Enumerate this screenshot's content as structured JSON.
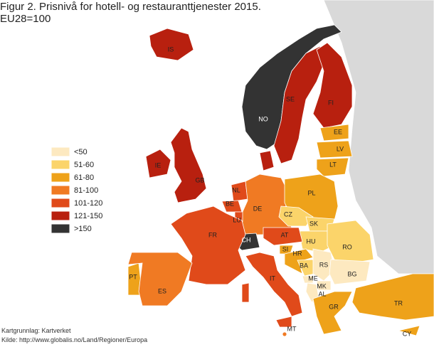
{
  "header": {
    "title": "Figur 2. Prisnivå for hotell- og restauranttjenester 2015.",
    "subtitle": "EU28=100"
  },
  "legend": [
    {
      "label": "<50",
      "color": "#fde9c0"
    },
    {
      "label": "51-60",
      "color": "#fbd46a"
    },
    {
      "label": "61-80",
      "color": "#eea21a"
    },
    {
      "label": "81-100",
      "color": "#f07a23"
    },
    {
      "label": "101-120",
      "color": "#e04a1a"
    },
    {
      "label": "121-150",
      "color": "#b8200f"
    },
    {
      "label": ">150",
      "color": "#333333"
    }
  ],
  "other_land_color": "#d9d9d9",
  "countries": [
    {
      "label": "IS",
      "class": 5
    },
    {
      "label": "NO",
      "class": 6
    },
    {
      "label": "SE",
      "class": 5
    },
    {
      "label": "FI",
      "class": 5
    },
    {
      "label": "EE",
      "class": 2
    },
    {
      "label": "LV",
      "class": 2
    },
    {
      "label": "LT",
      "class": 2
    },
    {
      "label": "IE",
      "class": 5
    },
    {
      "label": "GB",
      "class": 5
    },
    {
      "label": null,
      "class": 5
    },
    {
      "label": "NL",
      "class": 4
    },
    {
      "label": "BE",
      "class": 4
    },
    {
      "label": "LU",
      "class": 4
    },
    {
      "label": "DE",
      "class": 3
    },
    {
      "label": "PL",
      "class": 2
    },
    {
      "label": "CZ",
      "class": 1
    },
    {
      "label": "SK",
      "class": 1
    },
    {
      "label": "HU",
      "class": 1
    },
    {
      "label": "RO",
      "class": 1
    },
    {
      "label": "AT",
      "class": 4
    },
    {
      "label": "CH",
      "class": 6
    },
    {
      "label": "FR",
      "class": 4
    },
    {
      "label": "SI",
      "class": 2
    },
    {
      "label": "HR",
      "class": 2
    },
    {
      "label": "BA",
      "class": 1
    },
    {
      "label": "RS",
      "class": 0
    },
    {
      "label": "ME",
      "class": 0
    },
    {
      "label": "MK",
      "class": 0
    },
    {
      "label": "AL",
      "class": 0
    },
    {
      "label": "BG",
      "class": 0
    },
    {
      "label": "GR",
      "class": 2
    },
    {
      "label": "TR",
      "class": 2
    },
    {
      "label": "CY",
      "class": 2
    },
    {
      "label": "PT",
      "class": 2
    },
    {
      "label": "ES",
      "class": 3
    },
    {
      "label": "IT",
      "class": 4
    },
    {
      "label": "MT",
      "class": 3
    }
  ],
  "sources": [
    "Kartgrunnlag: Kartverket",
    "Kilde: http://www.globalis.no/Land/Regioner/Europa"
  ]
}
